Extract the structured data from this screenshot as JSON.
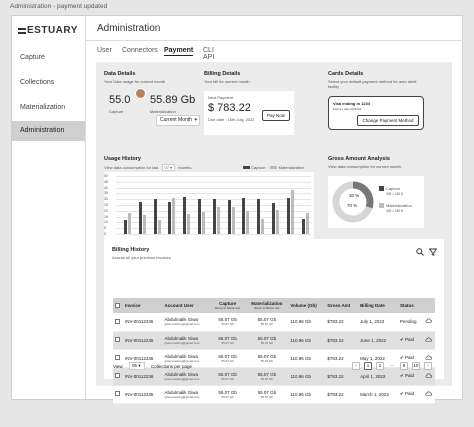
{
  "window_caption": "Administration - payment updated",
  "logo": "ESTUARY",
  "sidebar": {
    "items": [
      "Capture",
      "Collections",
      "Materialization",
      "Administration"
    ],
    "active": 3
  },
  "header": {
    "title": "Administration"
  },
  "tabs": {
    "items": [
      "User",
      "Connectors",
      "Payment",
      "CLI API"
    ],
    "active": 2
  },
  "data_details": {
    "title": "Data Details",
    "subtitle": "Your Data usage for current month",
    "capture_value": "55.0",
    "capture_label": "Capture",
    "mat_value": "55.89 Gb",
    "mat_label": "Materialization",
    "period_select": "Current Month"
  },
  "billing_details": {
    "title": "Billing Details",
    "subtitle": "Your bill for current month",
    "next_label": "Next Payment",
    "amount": "$ 783.22",
    "due": "Due date : 16th July, 2022",
    "pay_button": "Pay Now"
  },
  "cards_details": {
    "title": "Cards Details",
    "subtitle": "Select your default payment method for auto debit facility",
    "visa": "Visa ending in 1234",
    "expiry": "Expires date 08/2024",
    "change_button": "Change Payment Method"
  },
  "usage_history": {
    "title": "Usage History",
    "subtitle_prefix": "View data consumption for last",
    "months_value": "07",
    "subtitle_suffix": "months.",
    "legend_capture": "Capture",
    "legend_mat": "Materialization"
  },
  "gross_amount": {
    "title": "Gross Amount Analysis",
    "subtitle": "View data consumption for current month",
    "pct_outer": "30 %",
    "pct_inner": "70 %",
    "legend_capture": "Capture",
    "legend_capture_val": "400 = 150 $",
    "legend_mat": "Materialization",
    "legend_mat_val": "400 = 150 $"
  },
  "chart_data": {
    "type": "bar",
    "categories": [
      "Jan 1",
      "",
      "Feb 1",
      "",
      "Mar 1",
      "",
      "Apr 1",
      "",
      "May 1",
      "",
      "Jun 1",
      "",
      "Jul 1"
    ],
    "series": [
      {
        "name": "Capture",
        "values": [
          12,
          28,
          30,
          28,
          32,
          30,
          30,
          29,
          31,
          30,
          27,
          31,
          13
        ]
      },
      {
        "name": "Materialization",
        "values": [
          18,
          16,
          12,
          31,
          17,
          19,
          23,
          23,
          20,
          13,
          21,
          38,
          18
        ]
      }
    ],
    "yticks": [
      "0",
      "5",
      "10",
      "15",
      "20",
      "25",
      "30",
      "35",
      "40",
      "45",
      "50"
    ],
    "ylim": [
      0,
      50
    ]
  },
  "billing_history": {
    "title": "Billing History",
    "subtitle": "Access all your previous invoices",
    "headers": [
      "Invoice",
      "Account User",
      "Capture",
      "Materialization",
      "Volume (Gb)",
      "Gross Amt",
      "Billing Date",
      "Status"
    ],
    "header_subs": [
      "",
      "",
      "Store in   Store out",
      "Store in   Store out",
      "",
      "",
      "",
      ""
    ],
    "rows": [
      [
        "INV-00112236",
        "Abdulmalik Giwa",
        "giwa.smoking@gmail.com",
        "55.07 Gb",
        "55.07 Gb",
        "55.07 Gb",
        "55.07 Gb",
        "110.96 Gb",
        "$783.22",
        "July 1, 2022",
        "Pending"
      ],
      [
        "INV-00112236",
        "Abdulmalik Giwa",
        "giwa.smoking@gmail.com",
        "55.07 Gb",
        "55.07 Gb",
        "55.07 Gb",
        "55.07 Gb",
        "110.96 Gb",
        "$783.22",
        "June 1, 2022",
        "Paid"
      ],
      [
        "INV-00112236",
        "Abdulmalik Giwa",
        "giwa.smoking@gmail.com",
        "55.07 Gb",
        "55.07 Gb",
        "55.07 Gb",
        "55.07 Gb",
        "110.96 Gb",
        "$783.22",
        "May 1, 2022",
        "Paid"
      ],
      [
        "INV-00112236",
        "Abdulmalik Giwa",
        "giwa.smoking@gmail.com",
        "55.07 Gb",
        "55.07 Gb",
        "55.07 Gb",
        "55.07 Gb",
        "110.96 Gb",
        "$783.22",
        "April 1, 2022",
        "Paid"
      ],
      [
        "INV-00112236",
        "Abdulmalik Giwa",
        "giwa.smoking@gmail.com",
        "55.07 Gb",
        "55.07 Gb",
        "55.07 Gb",
        "55.07 Gb",
        "110.96 Gb",
        "$783.22",
        "March 1, 2022",
        "Paid"
      ]
    ]
  },
  "footer": {
    "view_label": "View",
    "per_page": "05",
    "per_page_suffix": "Collections per page",
    "pages": [
      "1",
      "2",
      "...",
      "9",
      "10"
    ],
    "current_page": "1"
  },
  "colors": {
    "capture_bar": "#444444",
    "mat_bar": "#bbbbbb",
    "panel_bg": "#ececec"
  }
}
